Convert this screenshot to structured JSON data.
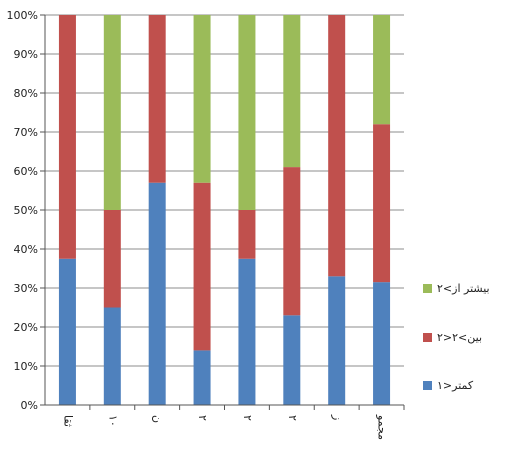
{
  "chart_data": {
    "type": "bar",
    "stacked": true,
    "categories": [
      "ثقا",
      "۱۰",
      "ن",
      "۲",
      "۲",
      "۲",
      "ز",
      "مجمو"
    ],
    "series": [
      {
        "name": "۱>کمتر",
        "color": "#4f81bd",
        "values": [
          37.5,
          25,
          57,
          14,
          37.5,
          23,
          33,
          31.5
        ]
      },
      {
        "name": "۲>بین>۲",
        "color": "#c0504d",
        "values": [
          62.5,
          25,
          43,
          43,
          12.5,
          38,
          67,
          40.5
        ]
      },
      {
        "name": "بیشتر از>۲",
        "color": "#9bbb59",
        "values": [
          0,
          50,
          0,
          43,
          50,
          39,
          0,
          28
        ]
      }
    ],
    "ylim": [
      0,
      100
    ],
    "yticks": [
      "0%",
      "10%",
      "20%",
      "30%",
      "40%",
      "50%",
      "60%",
      "70%",
      "80%",
      "90%",
      "100%"
    ],
    "grid": true,
    "legend_position": "right"
  }
}
